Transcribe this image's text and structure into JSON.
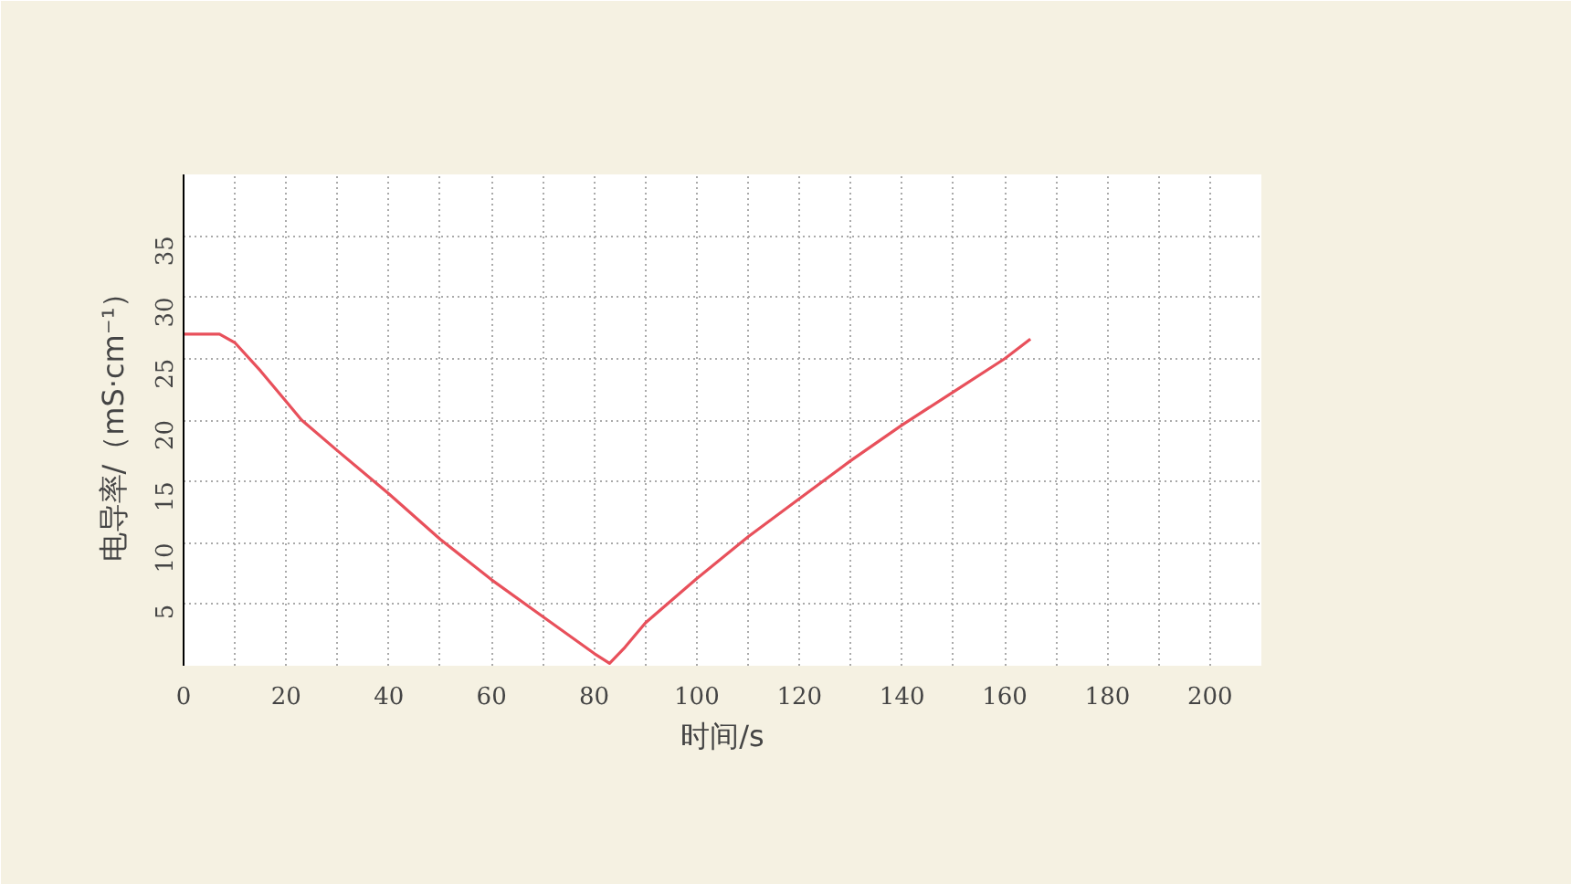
{
  "chart_data": {
    "type": "line",
    "xlabel": "时间/s",
    "ylabel": "电导率/（mS·cm⁻¹）",
    "x": [
      0,
      7,
      10,
      15,
      20,
      23,
      30,
      40,
      50,
      60,
      70,
      80,
      83,
      86,
      90,
      100,
      110,
      120,
      130,
      140,
      150,
      160,
      165
    ],
    "series": [
      {
        "color": "#e8505b",
        "values": [
          27,
          27,
          26.3,
          24,
          21.5,
          20,
          17.5,
          14,
          10.3,
          7,
          4,
          1,
          0.2,
          1.5,
          3.5,
          7.1,
          10.5,
          13.6,
          16.7,
          19.6,
          22.3,
          25,
          26.6
        ]
      }
    ],
    "xlim": [
      0,
      210
    ],
    "ylim": [
      0,
      40
    ],
    "xticks": [
      0,
      {
        "value": 10,
        "label": null
      },
      20,
      {
        "value": 30,
        "label": null
      },
      40,
      {
        "value": 50,
        "label": null
      },
      60,
      {
        "value": 70,
        "label": null
      },
      80,
      {
        "value": 90,
        "label": null
      },
      100,
      {
        "value": 110,
        "label": null
      },
      120,
      {
        "value": 130,
        "label": null
      },
      140,
      {
        "value": 150,
        "label": null
      },
      160,
      {
        "value": 170,
        "label": null
      },
      180,
      {
        "value": 190,
        "label": null
      },
      200
    ],
    "yticks": [
      5,
      10,
      15,
      20,
      25,
      30,
      35
    ],
    "grid": true,
    "line_style": "solid",
    "marker": "none"
  }
}
